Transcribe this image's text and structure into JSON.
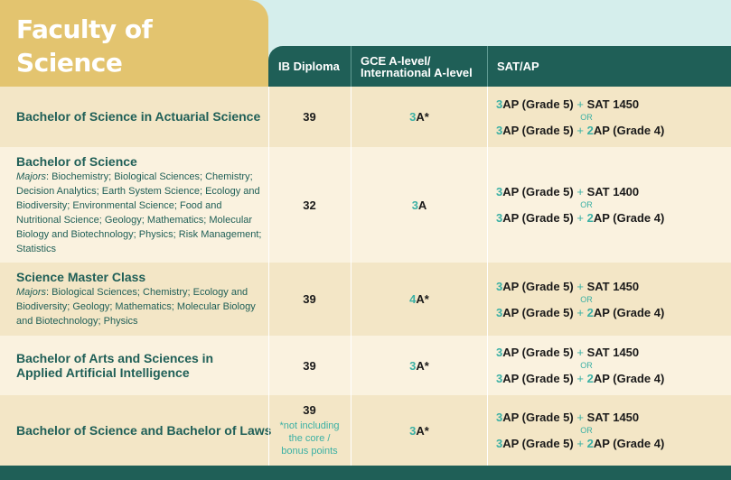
{
  "faculty_title": [
    "Faculty of",
    "Science"
  ],
  "headers": {
    "ib": "IB Diploma",
    "gce": [
      "GCE A-level/",
      "International A-level"
    ],
    "sat": "SAT/AP"
  },
  "or_label": "OR",
  "rows": [
    {
      "programme": "Bachelor of Science in Actuarial Science",
      "ib": "39",
      "gce_num": "3",
      "gce_grade": "A*",
      "sat": [
        [
          "3",
          "AP (Grade 5)",
          "SAT 1450"
        ],
        [
          "3",
          "AP (Grade 5)",
          "2",
          "AP (Grade 4)"
        ]
      ]
    },
    {
      "programme": "Bachelor of Science",
      "majors_label": "Majors",
      "majors": ": Biochemistry; Biological Sciences; Chemistry; Decision Analytics; Earth System Science; Ecology and Biodiversity; Environmental Science; Food and Nutritional Science; Geology; Mathematics; Molecular Biology and Biotechnology; Physics; Risk Management; Statistics",
      "ib": "32",
      "gce_num": "3",
      "gce_grade": "A",
      "sat": [
        [
          "3",
          "AP (Grade 5)",
          "SAT 1400"
        ],
        [
          "3",
          "AP (Grade 5)",
          "2",
          "AP (Grade 4)"
        ]
      ]
    },
    {
      "programme": "Science Master Class",
      "majors_label": "Majors",
      "majors": ": Biological Sciences; Chemistry; Ecology and Biodiversity; Geology; Mathematics; Molecular Biology and Biotechnology; Physics",
      "ib": "39",
      "gce_num": "4",
      "gce_grade": "A*",
      "sat": [
        [
          "3",
          "AP (Grade 5)",
          "SAT 1450"
        ],
        [
          "3",
          "AP (Grade 5)",
          "2",
          "AP (Grade 4)"
        ]
      ]
    },
    {
      "programme": "Bachelor of Arts and Sciences in Applied Artificial Intelligence",
      "ib": "39",
      "gce_num": "3",
      "gce_grade": "A*",
      "sat": [
        [
          "3",
          "AP (Grade 5)",
          "SAT 1450"
        ],
        [
          "3",
          "AP (Grade 5)",
          "2",
          "AP (Grade 4)"
        ]
      ]
    },
    {
      "programme": "Bachelor of Science and Bachelor of Laws",
      "ib": "39",
      "ib_note": "*not including the core / bonus points",
      "gce_num": "3",
      "gce_grade": "A*",
      "sat": [
        [
          "3",
          "AP (Grade 5)",
          "SAT 1450"
        ],
        [
          "3",
          "AP (Grade 5)",
          "2",
          "AP (Grade 4)"
        ]
      ]
    }
  ],
  "colors": {
    "dark_teal": "#1f5f57",
    "accent_teal": "#3bb0a4",
    "gold": "#e3c46f",
    "row_dark": "#f3e6c6",
    "row_light": "#faf2df"
  }
}
